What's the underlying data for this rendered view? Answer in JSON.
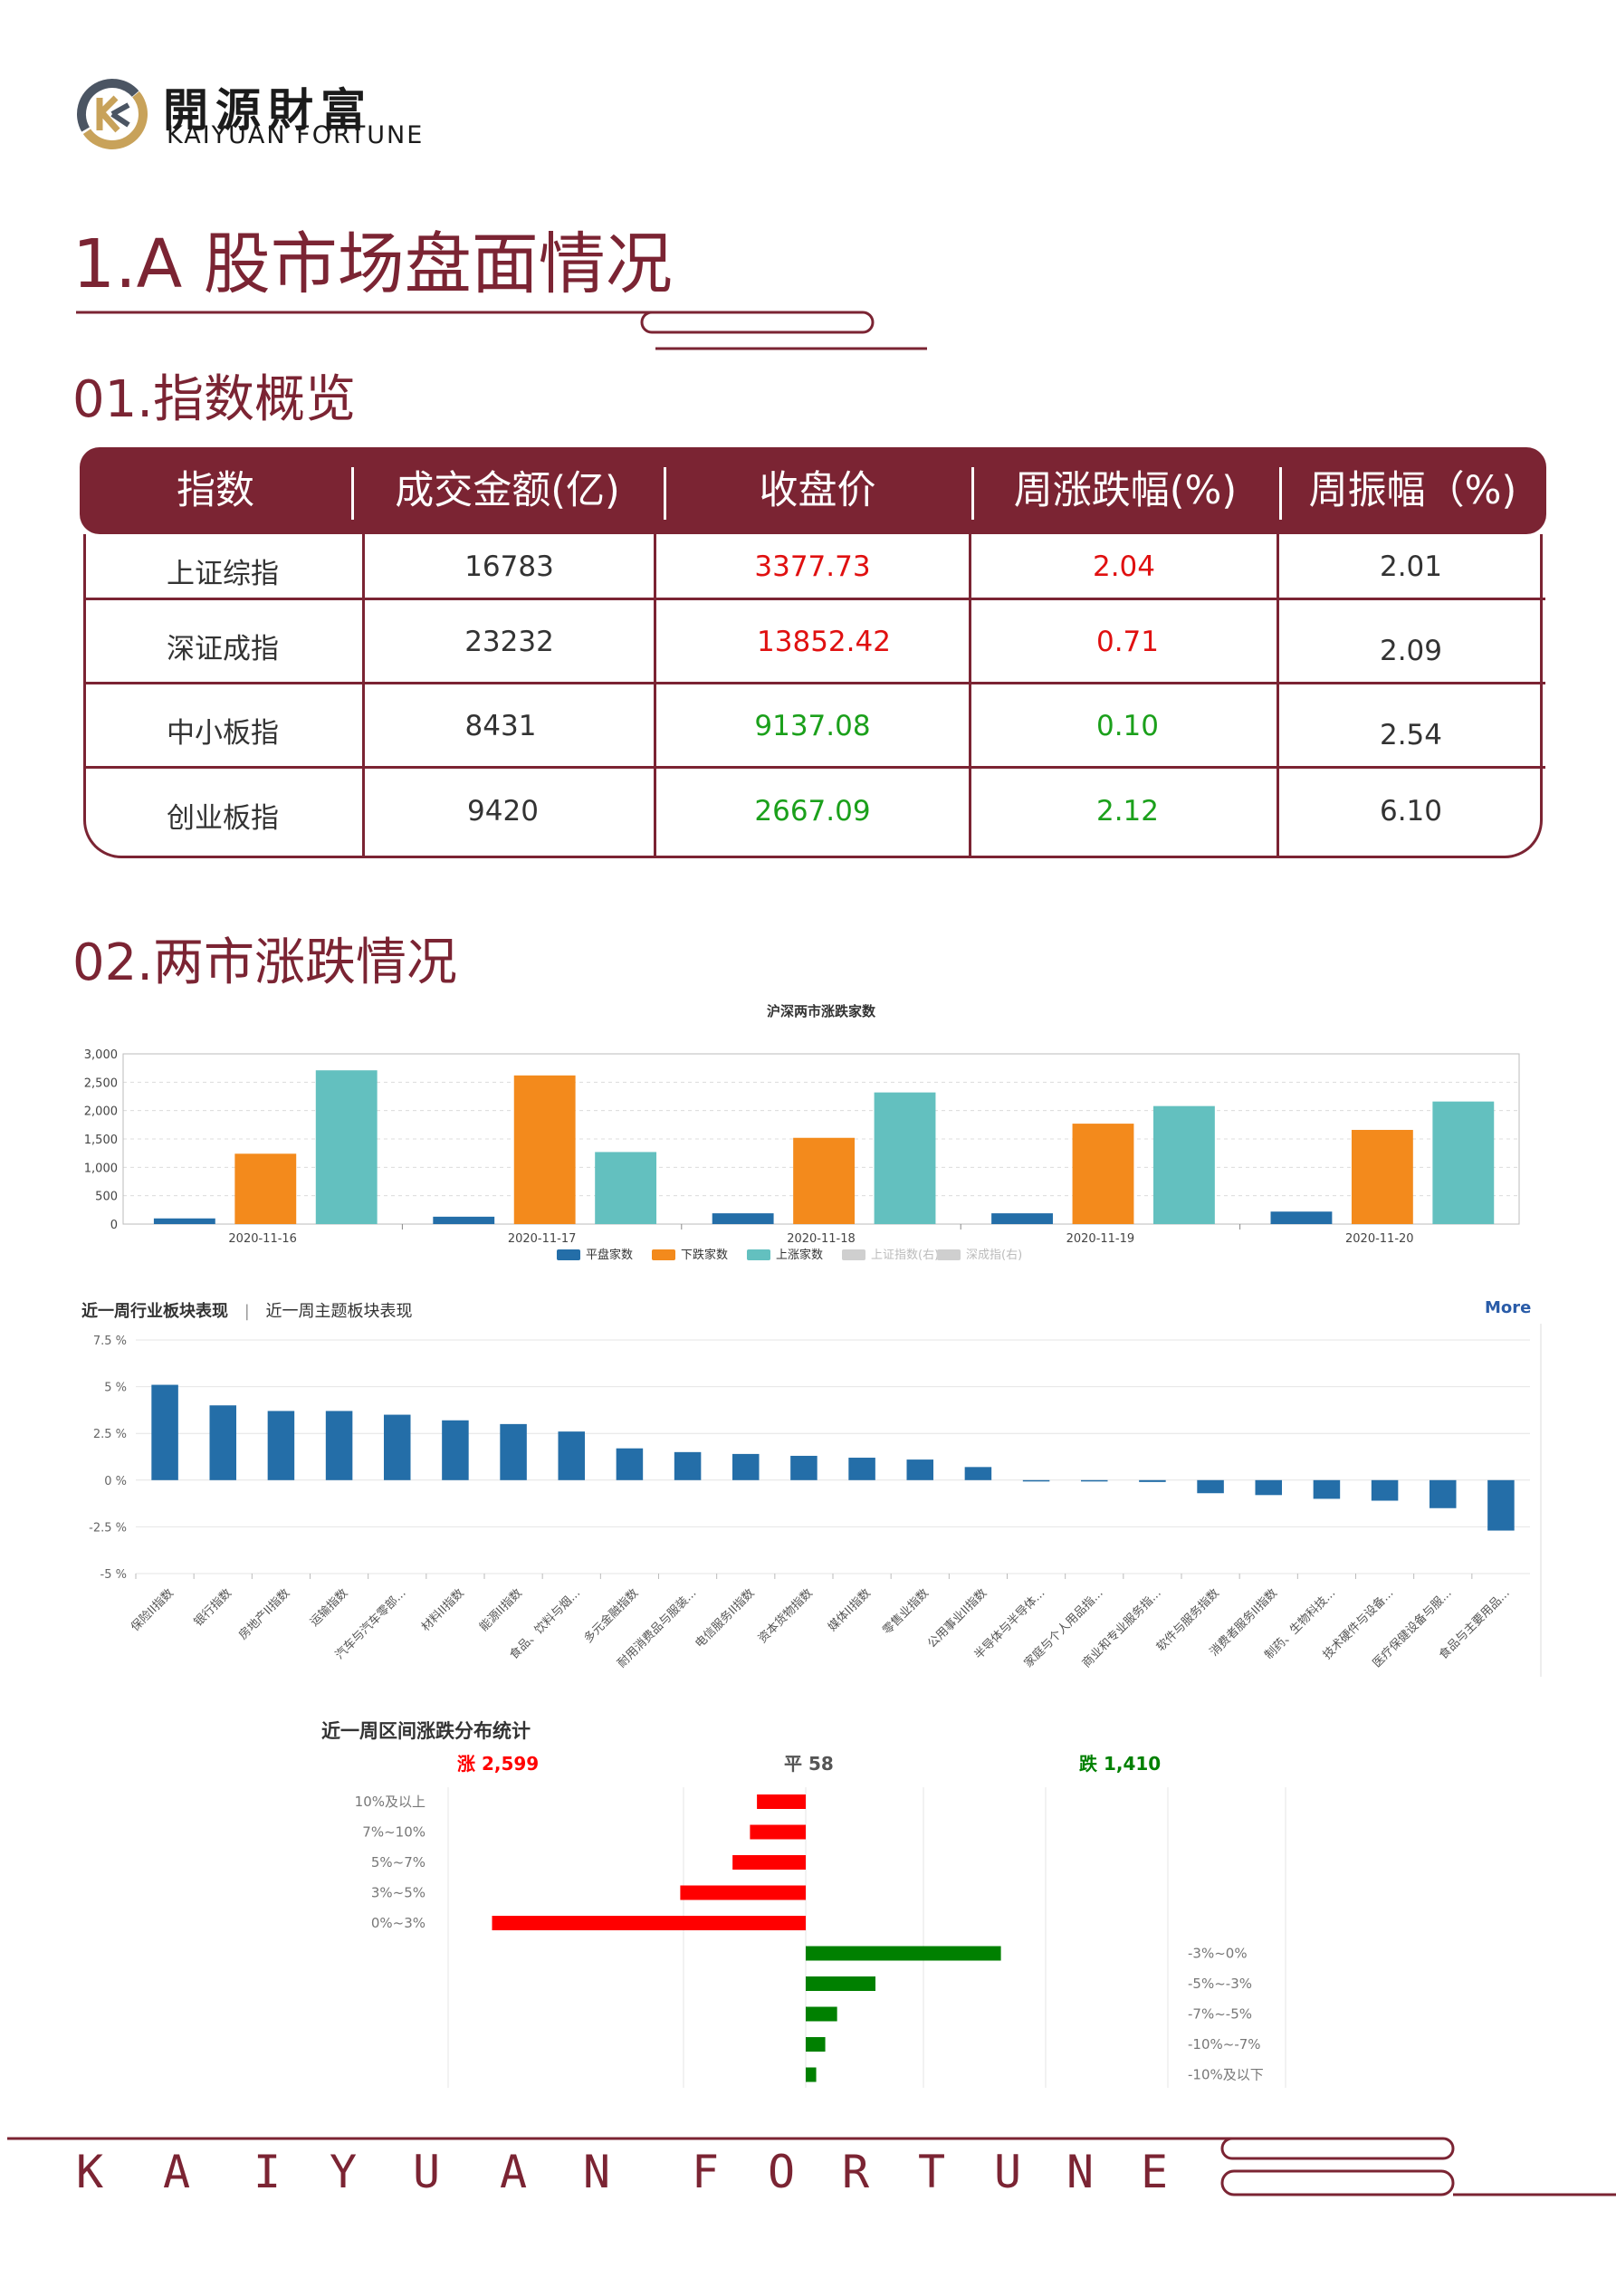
{
  "brand": {
    "cn": "開源財富",
    "en": "KAIYUAN FORTUNE"
  },
  "heading": "1.A 股市场盘面情况",
  "section1": "01.指数概览",
  "section2": "02.两市涨跌情况",
  "table": {
    "headers": [
      "指数",
      "成交金额(亿)",
      "收盘价",
      "周涨跌幅(%)",
      "周振幅（%)"
    ],
    "rows": [
      {
        "name": "上证综指",
        "amount": "16783",
        "close": "3377.73",
        "chg": "2.04",
        "amp": "2.01",
        "trend": "up"
      },
      {
        "name": "深证成指",
        "amount": "23232",
        "close": "13852.42",
        "chg": "0.71",
        "amp": "2.09",
        "trend": "up"
      },
      {
        "name": "中小板指",
        "amount": "8431",
        "close": "9137.08",
        "chg": "0.10",
        "amp": "2.54",
        "trend": "down"
      },
      {
        "name": "创业板指",
        "amount": "9420",
        "close": "2667.09",
        "chg": "2.12",
        "amp": "6.10",
        "trend": "down"
      }
    ],
    "colors": {
      "up": "#e01010",
      "down": "#1ba01b",
      "brand": "#7b2433"
    }
  },
  "chart_data": [
    {
      "type": "bar",
      "title": "沪深两市涨跌家数",
      "categories": [
        "2020-11-16",
        "2020-11-17",
        "2020-11-18",
        "2020-11-19",
        "2020-11-20"
      ],
      "series": [
        {
          "name": "平盘家数",
          "color": "#246ea8",
          "values": [
            100,
            130,
            190,
            190,
            220
          ]
        },
        {
          "name": "下跌家数",
          "color": "#f38a1c",
          "values": [
            1240,
            2620,
            1520,
            1770,
            1660
          ]
        },
        {
          "name": "上涨家数",
          "color": "#63c0bf",
          "values": [
            2710,
            1270,
            2320,
            2080,
            2160
          ]
        }
      ],
      "legend_extra": [
        "上证指数(右)",
        "深成指(右)"
      ],
      "yticks": [
        "3,000",
        "2,500",
        "2,000",
        "1,500",
        "1,000",
        "500",
        "0"
      ],
      "ylim": [
        0,
        3000
      ],
      "grid": true,
      "legend": "bottom"
    },
    {
      "type": "bar",
      "tabs": [
        "近一周行业板块表现",
        "近一周主题板块表现"
      ],
      "more": "More",
      "categories": [
        "保险II指数",
        "银行指数",
        "房地产II指数",
        "运输指数",
        "汽车与汽车零部...",
        "材料II指数",
        "能源II指数",
        "食品、饮料与烟...",
        "多元金融指数",
        "耐用消费品与服装...",
        "电信服务II指数",
        "资本货物指数",
        "媒体II指数",
        "零售业指数",
        "公用事业II指数",
        "半导体与半导体...",
        "家庭与个人用品指...",
        "商业和专业服务指...",
        "软件与服务指数",
        "消费者服务II指数",
        "制药、生物科技...",
        "技术硬件与设备...",
        "医疗保健设备与服...",
        "食品与主要用品..."
      ],
      "values": [
        5.1,
        4.0,
        3.7,
        3.7,
        3.5,
        3.2,
        3.0,
        2.6,
        1.7,
        1.5,
        1.4,
        1.3,
        1.2,
        1.1,
        0.7,
        -0.05,
        -0.05,
        -0.1,
        -0.7,
        -0.8,
        -1.0,
        -1.1,
        -1.5,
        -2.7
      ],
      "color": "#246ea8",
      "yticks": [
        "7.5 %",
        "5 %",
        "2.5 %",
        "0 %",
        "-2.5 %",
        "-5 %"
      ],
      "ylim": [
        -5,
        7.5
      ],
      "grid": true
    },
    {
      "type": "bar",
      "title": "近一周区间涨跌分布统计",
      "summary": {
        "up": "涨 2,599",
        "flat": "平 58",
        "down": "跌 1,410"
      },
      "up_categories": [
        "10%及以上",
        "7%~10%",
        "5%~7%",
        "3%~5%",
        "0%~3%"
      ],
      "up_values": [
        70,
        80,
        105,
        180,
        450
      ],
      "down_categories": [
        "-3%~0%",
        "-5%~-3%",
        "-7%~-5%",
        "-10%~-7%",
        "-10%及以下"
      ],
      "down_values": [
        280,
        100,
        45,
        28,
        15
      ],
      "up_color": "#ff0000",
      "down_color": "#008000"
    }
  ],
  "footer": {
    "letters": [
      "K",
      "A",
      "I",
      "Y",
      "U",
      "A",
      "N",
      "F",
      "O",
      "R",
      "T",
      "U",
      "N",
      "E"
    ]
  }
}
